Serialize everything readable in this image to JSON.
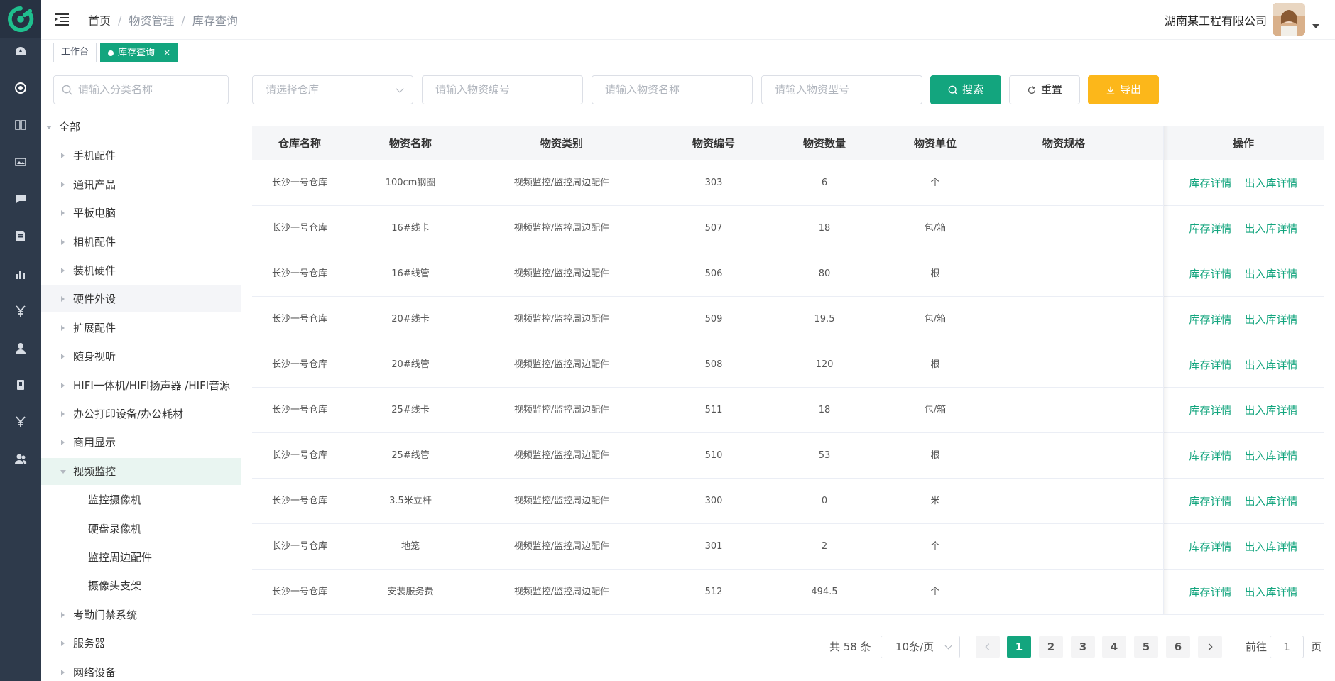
{
  "header": {
    "breadcrumb": [
      "首页",
      "物资管理",
      "库存查询"
    ],
    "breadcrumb_sep": "/",
    "company": "湖南某工程有限公司"
  },
  "tabs": [
    {
      "label": "工作台",
      "active": false
    },
    {
      "label": "库存查询",
      "active": true,
      "close": "×"
    }
  ],
  "rail": {
    "icons": [
      "dashboard-icon",
      "material-icon",
      "book-icon",
      "image-icon",
      "message-icon",
      "document-icon",
      "chart-icon",
      "yen-icon",
      "user-icon",
      "card-icon",
      "yen-alt-icon",
      "team-icon"
    ]
  },
  "tree": {
    "search_placeholder": "请输入分类名称",
    "nodes": [
      {
        "label": "全部",
        "level": 0,
        "expanded": true
      },
      {
        "label": "手机配件",
        "level": 1
      },
      {
        "label": "通讯产品",
        "level": 1
      },
      {
        "label": "平板电脑",
        "level": 1
      },
      {
        "label": "相机配件",
        "level": 1
      },
      {
        "label": "装机硬件",
        "level": 1
      },
      {
        "label": "硬件外设",
        "level": 1,
        "hover": true
      },
      {
        "label": "扩展配件",
        "level": 1
      },
      {
        "label": "随身视听",
        "level": 1
      },
      {
        "label": "HIFI一体机/HIFI扬声器 /HIFI音源",
        "level": 1
      },
      {
        "label": "办公打印设备/办公耗材",
        "level": 1
      },
      {
        "label": "商用显示",
        "level": 1
      },
      {
        "label": "视频监控",
        "level": 1,
        "expanded": true,
        "current": true
      },
      {
        "label": "监控摄像机",
        "level": 2
      },
      {
        "label": "硬盘录像机",
        "level": 2
      },
      {
        "label": "监控周边配件",
        "level": 2
      },
      {
        "label": "摄像头支架",
        "level": 2
      },
      {
        "label": "考勤门禁系统",
        "level": 1
      },
      {
        "label": "服务器",
        "level": 1
      },
      {
        "label": "网络设备",
        "level": 1
      }
    ]
  },
  "filters": {
    "warehouse_placeholder": "请选择仓库",
    "code_placeholder": "请输入物资编号",
    "name_placeholder": "请输入物资名称",
    "model_placeholder": "请输入物资型号",
    "search_label": "搜索",
    "reset_label": "重置",
    "export_label": "导出"
  },
  "table": {
    "columns": [
      "仓库名称",
      "物资名称",
      "物资类别",
      "物资编号",
      "物资数量",
      "物资单位",
      "物资规格",
      "操作"
    ],
    "rows": [
      [
        "长沙一号仓库",
        "100cm钢圈",
        "视频监控/监控周边配件",
        "303",
        "6",
        "个",
        ""
      ],
      [
        "长沙一号仓库",
        "16#线卡",
        "视频监控/监控周边配件",
        "507",
        "18",
        "包/箱",
        ""
      ],
      [
        "长沙一号仓库",
        "16#线管",
        "视频监控/监控周边配件",
        "506",
        "80",
        "根",
        ""
      ],
      [
        "长沙一号仓库",
        "20#线卡",
        "视频监控/监控周边配件",
        "509",
        "19.5",
        "包/箱",
        ""
      ],
      [
        "长沙一号仓库",
        "20#线管",
        "视频监控/监控周边配件",
        "508",
        "120",
        "根",
        ""
      ],
      [
        "长沙一号仓库",
        "25#线卡",
        "视频监控/监控周边配件",
        "511",
        "18",
        "包/箱",
        ""
      ],
      [
        "长沙一号仓库",
        "25#线管",
        "视频监控/监控周边配件",
        "510",
        "53",
        "根",
        ""
      ],
      [
        "长沙一号仓库",
        "3.5米立杆",
        "视频监控/监控周边配件",
        "300",
        "0",
        "米",
        ""
      ],
      [
        "长沙一号仓库",
        "地笼",
        "视频监控/监控周边配件",
        "301",
        "2",
        "个",
        ""
      ],
      [
        "长沙一号仓库",
        "安装服务费",
        "视频监控/监控周边配件",
        "512",
        "494.5",
        "个",
        ""
      ]
    ],
    "action_stock": "库存详情",
    "action_inout": "出入库详情"
  },
  "pagination": {
    "total": "共 58 条",
    "page_size": "10条/页",
    "pages": [
      "1",
      "2",
      "3",
      "4",
      "5",
      "6"
    ],
    "current": "1",
    "goto_label": "前往",
    "goto_value": "1",
    "goto_unit": "页"
  },
  "colors": {
    "primary": "#13a57e",
    "export": "#fcb71a",
    "rail": "#2e3a4b"
  }
}
